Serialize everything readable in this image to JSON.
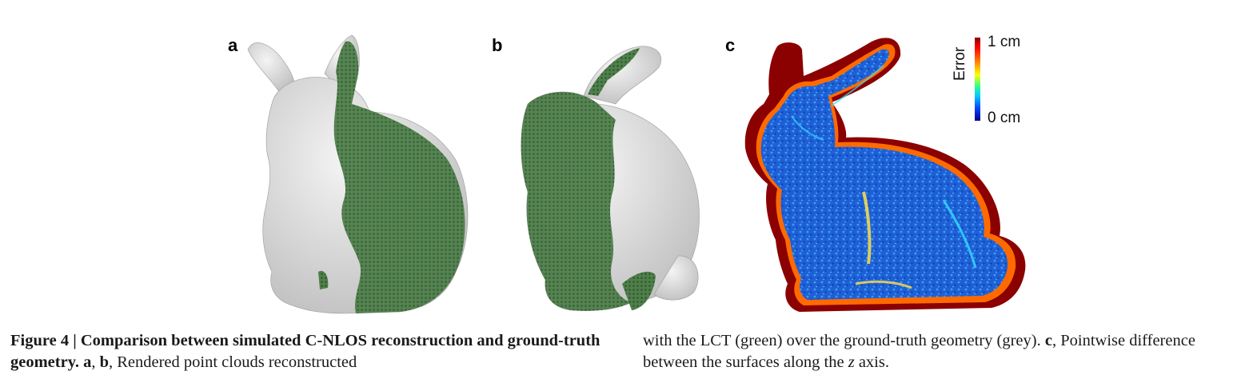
{
  "figure": {
    "panels": [
      {
        "label": "a",
        "content": "bunny-front-view"
      },
      {
        "label": "b",
        "content": "bunny-back-view"
      },
      {
        "label": "c",
        "content": "error-map"
      }
    ],
    "colorbar": {
      "title": "Error",
      "max_label": "1 cm",
      "min_label": "0 cm",
      "colors": {
        "high": "#8b0000",
        "mid": "#ffff00",
        "low": "#00008b"
      }
    },
    "colors": {
      "ground_truth": "#dcdcdc",
      "reconstruction": "#3f6b3c",
      "error_base": "#1f5fd6",
      "error_edge": "#8b0000"
    }
  },
  "caption": {
    "figure_number": "Figure 4",
    "separator": " | ",
    "title": "Comparison between simulated C-NLOS reconstruction and ground-truth geometry.",
    "ref_a": "a",
    "ref_sep": ", ",
    "ref_b": "b",
    "text_ab": ", Rendered point clouds reconstructed",
    "text_ab_cont": "with the LCT (green) over the ground-truth geometry (grey).",
    "ref_c": "c",
    "text_c": ", Pointwise difference between the surfaces along the ",
    "axis": "z",
    "text_end": " axis."
  }
}
